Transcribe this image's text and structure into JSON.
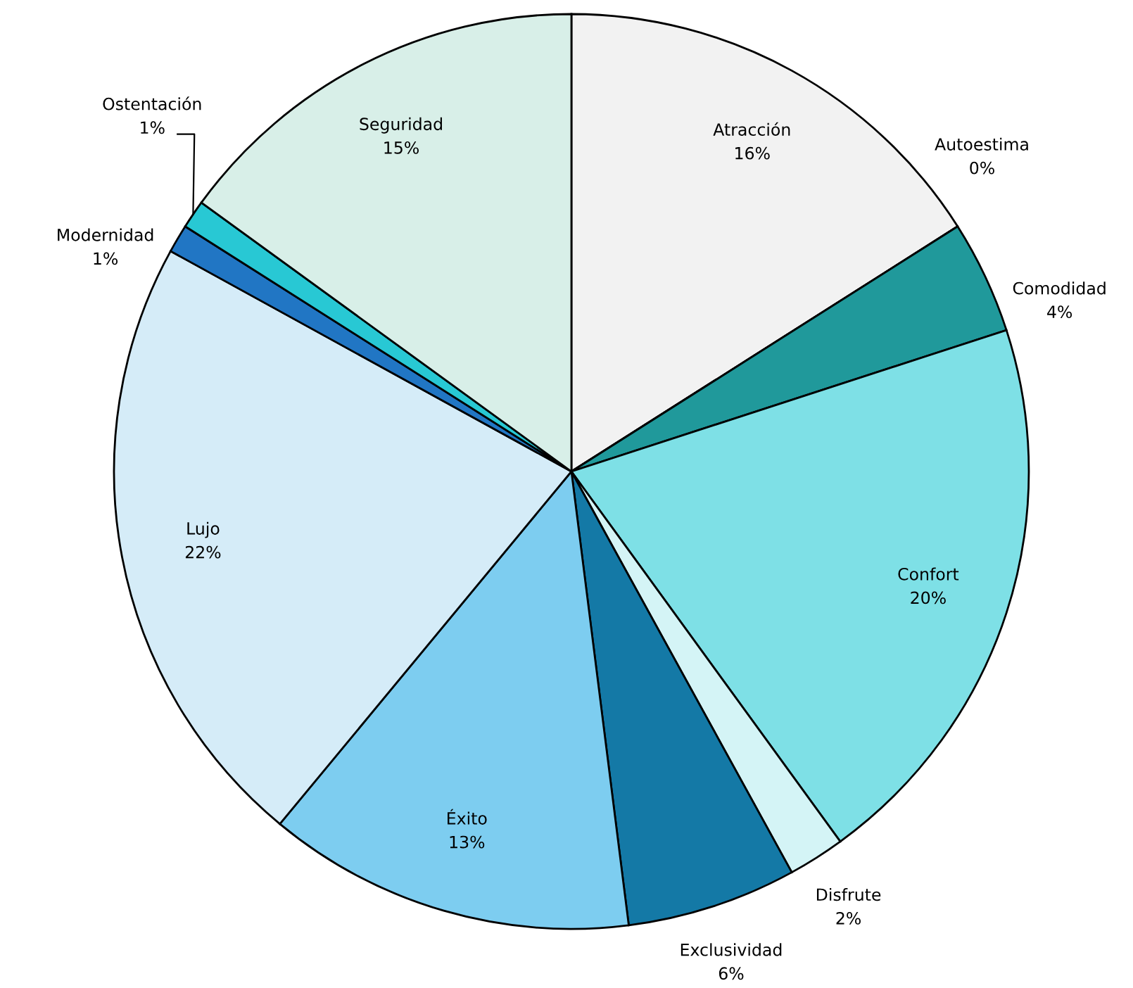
{
  "chart_data": {
    "type": "pie",
    "categories": [
      "Atracción",
      "Autoestima",
      "Comodidad",
      "Confort",
      "Disfrute",
      "Exclusividad",
      "Éxito",
      "Lujo",
      "Modernidad",
      "Ostentación",
      "Seguridad"
    ],
    "values": [
      16,
      0,
      4,
      20,
      2,
      6,
      13,
      22,
      1,
      1,
      15
    ],
    "value_labels": [
      "16%",
      "0%",
      "4%",
      "20%",
      "2%",
      "6%",
      "13%",
      "22%",
      "1%",
      "1%",
      "15%"
    ],
    "colors": [
      "#f2f2f2",
      "#ffffff",
      "#20999b",
      "#7ee0e6",
      "#d4f4f6",
      "#1479a6",
      "#7dcdf0",
      "#d5ecf8",
      "#2176c4",
      "#28c8d4",
      "#d8efe8"
    ],
    "legend": false
  }
}
